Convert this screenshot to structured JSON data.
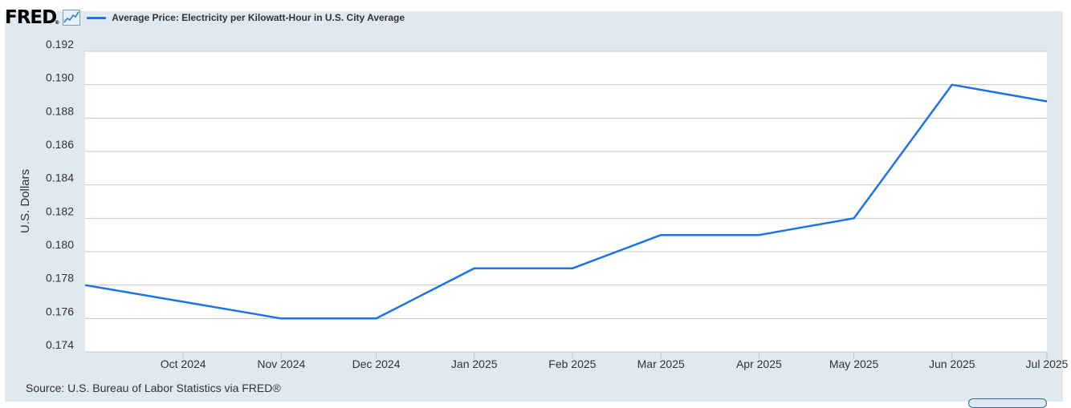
{
  "header": {
    "logo_text": "FRED",
    "logo_mark": "®",
    "graph_icon": "line-graph-icon"
  },
  "source_text": "Source: U.S. Bureau of Labor Statistics via FRED®",
  "colors": {
    "series": "#1a73e8",
    "frame_bg": "#e1e9f0",
    "plot_bg": "#ffffff",
    "grid": "#c8c8c8",
    "axis_text": "#333333"
  },
  "chart_data": {
    "type": "line",
    "title": "",
    "legend": [
      "Average Price: Electricity per Kilowatt-Hour in U.S. City Average"
    ],
    "ylabel": "U.S. Dollars",
    "xlabel": "",
    "ylim": [
      0.174,
      0.192
    ],
    "yticks": [
      "0.174",
      "0.176",
      "0.178",
      "0.180",
      "0.182",
      "0.184",
      "0.186",
      "0.188",
      "0.190",
      "0.192"
    ],
    "xlim": [
      "2024-08-31",
      "2025-07-01"
    ],
    "xticks": [
      {
        "date": "2024-10-01",
        "label": "Oct 2024"
      },
      {
        "date": "2024-11-01",
        "label": "Nov 2024"
      },
      {
        "date": "2024-12-01",
        "label": "Dec 2024"
      },
      {
        "date": "2025-01-01",
        "label": "Jan 2025"
      },
      {
        "date": "2025-02-01",
        "label": "Feb 2025"
      },
      {
        "date": "2025-03-01",
        "label": "Mar 2025"
      },
      {
        "date": "2025-04-01",
        "label": "Apr 2025"
      },
      {
        "date": "2025-05-01",
        "label": "May 2025"
      },
      {
        "date": "2025-06-01",
        "label": "Jun 2025"
      },
      {
        "date": "2025-07-01",
        "label": "Jul 2025"
      }
    ],
    "grid": true,
    "legend_position": "top-left",
    "series": [
      {
        "name": "Average Price: Electricity per Kilowatt-Hour in U.S. City Average",
        "x": [
          "2024-08-31",
          "2024-11-01",
          "2024-12-01",
          "2025-01-01",
          "2025-02-01",
          "2025-03-01",
          "2025-04-01",
          "2025-05-01",
          "2025-06-01",
          "2025-07-01"
        ],
        "y": [
          0.178,
          0.176,
          0.176,
          0.179,
          0.179,
          0.181,
          0.181,
          0.182,
          0.19,
          0.189
        ]
      }
    ]
  }
}
